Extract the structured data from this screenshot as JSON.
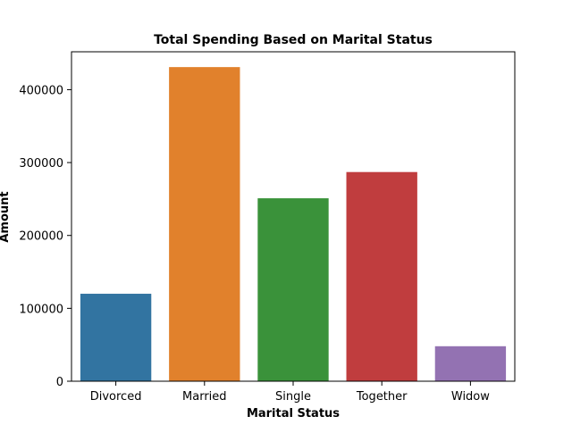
{
  "chart_data": {
    "type": "bar",
    "title": "Total Spending Based on Marital Status",
    "xlabel": "Marital Status",
    "ylabel": "Amount",
    "categories": [
      "Divorced",
      "Married",
      "Single",
      "Together",
      "Widow"
    ],
    "values": [
      120000,
      431000,
      251000,
      287000,
      48000
    ],
    "ylim": [
      0,
      452000
    ],
    "yticks": [
      0,
      100000,
      200000,
      300000,
      400000
    ],
    "ytick_labels": [
      "0",
      "100000",
      "200000",
      "300000",
      "400000"
    ],
    "colors": [
      "#3274a1",
      "#e1812c",
      "#3a923a",
      "#c03d3e",
      "#9372b2"
    ],
    "grid": false,
    "legend": "none"
  }
}
